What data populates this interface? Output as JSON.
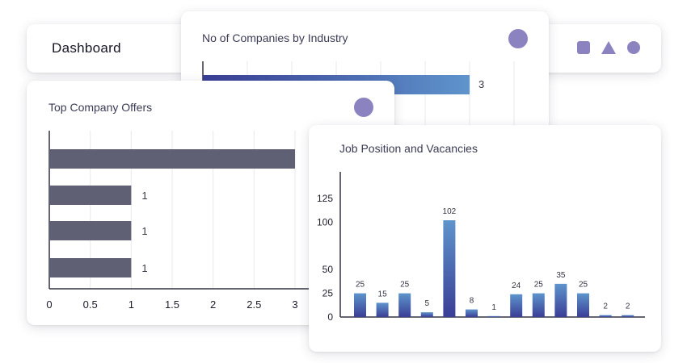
{
  "header": {
    "title": "Dashboard",
    "icons": [
      "square-icon",
      "triangle-icon",
      "circle-icon"
    ]
  },
  "colors": {
    "accent": "#8a83c0",
    "offer_bar": "#606075",
    "bar_dark": "#3a3e96",
    "bar_light": "#5e94cc",
    "grid": "#e8e8ee",
    "axis": "#333344"
  },
  "industry": {
    "title": "No of Companies by Industry",
    "chart_data": {
      "type": "bar",
      "orientation": "horizontal",
      "values": [
        3
      ],
      "value_labels": [
        "3"
      ],
      "xlim": [
        0,
        3.5
      ],
      "grid": true
    }
  },
  "offers": {
    "title": "Top Company Offers",
    "chart_data": {
      "type": "bar",
      "orientation": "horizontal",
      "values": [
        3,
        1,
        1,
        1
      ],
      "value_labels": [
        "",
        "1",
        "1",
        "1"
      ],
      "x_ticks": [
        "0",
        "0.5",
        "1",
        "1.5",
        "2",
        "2.5",
        "3"
      ],
      "xlim": [
        0,
        3
      ],
      "grid": true
    }
  },
  "jobs": {
    "title": "Job Position and Vacancies",
    "chart_data": {
      "type": "bar",
      "values": [
        25,
        15,
        25,
        5,
        102,
        8,
        1,
        24,
        25,
        35,
        25,
        2,
        2
      ],
      "value_labels": [
        "25",
        "15",
        "25",
        "5",
        "102",
        "8",
        "1",
        "24",
        "25",
        "35",
        "25",
        "2",
        "2"
      ],
      "y_ticks": [
        "0",
        "25",
        "50",
        "100",
        "125"
      ],
      "ylim": [
        0,
        125
      ],
      "grid": false
    }
  }
}
